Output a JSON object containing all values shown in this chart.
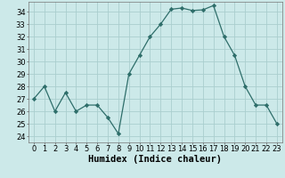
{
  "x": [
    0,
    1,
    2,
    3,
    4,
    5,
    6,
    7,
    8,
    9,
    10,
    11,
    12,
    13,
    14,
    15,
    16,
    17,
    18,
    19,
    20,
    21,
    22,
    23
  ],
  "y": [
    27,
    28,
    26,
    27.5,
    26,
    26.5,
    26.5,
    25.5,
    24.2,
    29,
    30.5,
    32,
    33,
    34.2,
    34.3,
    34.1,
    34.15,
    34.5,
    32,
    30.5,
    28,
    26.5,
    26.5,
    25
  ],
  "line_color": "#2e6e6a",
  "marker": "D",
  "marker_size": 2.2,
  "bg_color": "#cce9e9",
  "grid_color": "#aacece",
  "xlabel": "Humidex (Indice chaleur)",
  "ylim": [
    23.5,
    34.8
  ],
  "yticks": [
    24,
    25,
    26,
    27,
    28,
    29,
    30,
    31,
    32,
    33,
    34
  ],
  "xlim": [
    -0.5,
    23.5
  ],
  "xticks": [
    0,
    1,
    2,
    3,
    4,
    5,
    6,
    7,
    8,
    9,
    10,
    11,
    12,
    13,
    14,
    15,
    16,
    17,
    18,
    19,
    20,
    21,
    22,
    23
  ],
  "xlabel_fontsize": 7.5,
  "tick_fontsize": 6
}
